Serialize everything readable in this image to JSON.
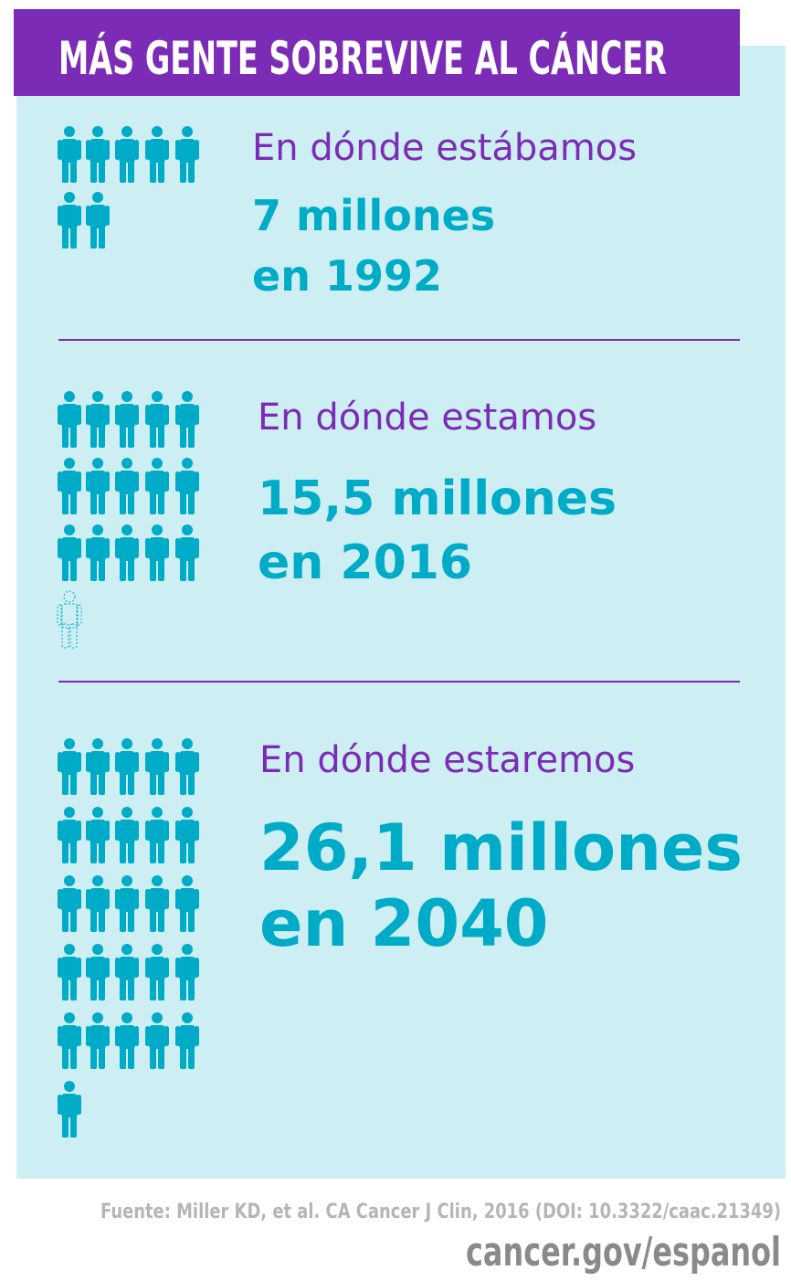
{
  "header": {
    "title": "MÁS GENTE SOBREVIVE AL CÁNCER"
  },
  "sections": [
    {
      "heading": "En dónde estábamos",
      "lines": [
        "7 millones",
        "en 1992"
      ],
      "icons": 7
    },
    {
      "heading": "En dónde estamos",
      "lines": [
        "15,5 millones",
        "en 2016"
      ],
      "icons": 15.5
    },
    {
      "heading": "En dónde estaremos",
      "lines": [
        "26,1 millones",
        "en 2040"
      ],
      "icons": 26
    }
  ],
  "footer": {
    "source": "Fuente: Miller KD, et al. CA Cancer J Clin, 2016 (DOI: 10.3322/caac.21349)",
    "url": "cancer.gov/espanol"
  }
}
